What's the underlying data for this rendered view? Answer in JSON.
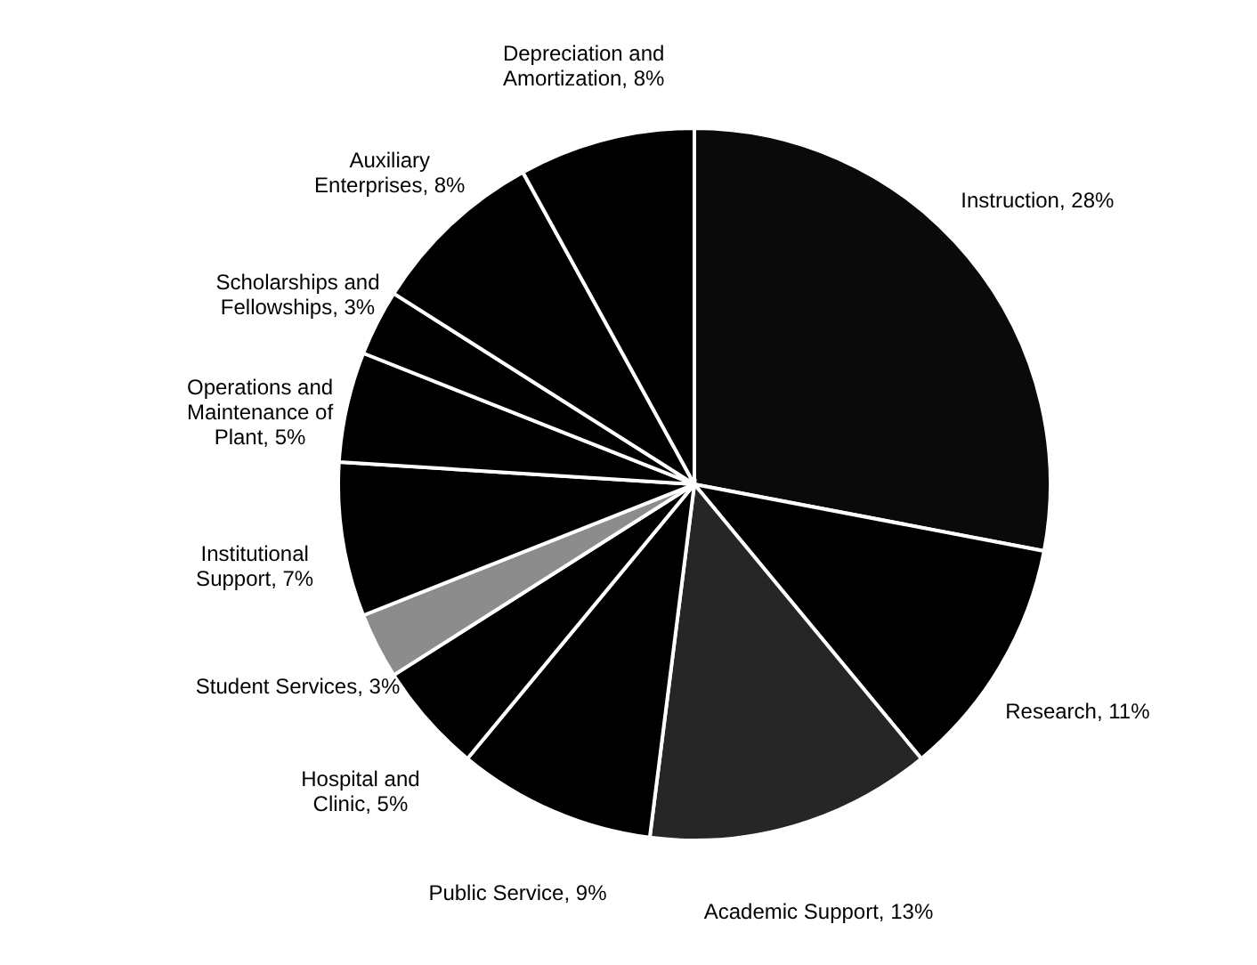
{
  "chart_data": {
    "type": "pie",
    "categories": [
      "Instruction",
      "Research",
      "Academic Support",
      "Public Service",
      "Hospital and Clinic",
      "Student Services",
      "Institutional Support",
      "Operations and Maintenance of Plant",
      "Scholarships and Fellowships",
      "Auxiliary Enterprises",
      "Depreciation and Amortization"
    ],
    "values": [
      28,
      11,
      13,
      9,
      5,
      3,
      7,
      5,
      3,
      8,
      8
    ],
    "value_labels": [
      "28%",
      "11%",
      "13%",
      "9%",
      "5%",
      "3%",
      "7%",
      "5%",
      "3%",
      "8%",
      "8%"
    ],
    "colors": [
      "#0a0a0a",
      "#000000",
      "#262626",
      "#000000",
      "#000000",
      "#8c8c8c",
      "#000000",
      "#000000",
      "#000000",
      "#000000",
      "#000000"
    ]
  }
}
